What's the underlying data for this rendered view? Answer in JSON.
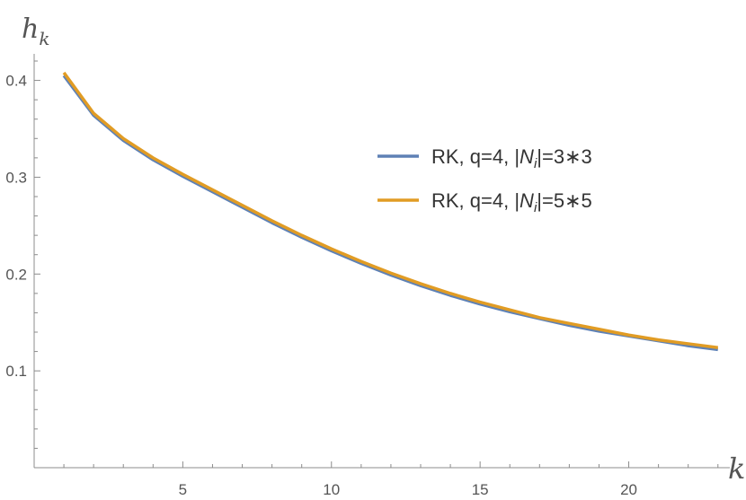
{
  "chart_data": {
    "type": "line",
    "title": "",
    "xlabel": "k",
    "ylabel_main": "h",
    "ylabel_sub": "k",
    "xlim": [
      0,
      23.4
    ],
    "ylim": [
      0,
      0.42
    ],
    "xticks": [
      5,
      10,
      15,
      20
    ],
    "xtick_labels": [
      "5",
      "10",
      "15",
      "20"
    ],
    "yticks": [
      0.1,
      0.2,
      0.3,
      0.4
    ],
    "ytick_labels": [
      "0.1",
      "0.2",
      "0.3",
      "0.4"
    ],
    "grid": false,
    "legend_position": "right",
    "x": [
      1,
      2,
      3,
      4,
      5,
      6,
      7,
      8,
      9,
      10,
      11,
      12,
      13,
      14,
      15,
      16,
      17,
      18,
      19,
      20,
      21,
      22,
      23
    ],
    "series": [
      {
        "name": "RK, q=4, |N_i|=3∗3",
        "legend": {
          "prefix": "RK, q=4, |",
          "var": "N",
          "sub": "i",
          "suffix": "|=3∗3"
        },
        "color": "#5e81b5",
        "values": [
          0.405,
          0.364,
          0.338,
          0.318,
          0.301,
          0.285,
          0.269,
          0.253,
          0.238,
          0.224,
          0.211,
          0.199,
          0.188,
          0.178,
          0.169,
          0.161,
          0.154,
          0.147,
          0.141,
          0.136,
          0.131,
          0.126,
          0.122
        ]
      },
      {
        "name": "RK, q=4, |N_i|=5∗5",
        "legend": {
          "prefix": "RK, q=4, |",
          "var": "N",
          "sub": "i",
          "suffix": "|=5∗5"
        },
        "color": "#e19c24",
        "values": [
          0.408,
          0.366,
          0.34,
          0.32,
          0.303,
          0.287,
          0.271,
          0.255,
          0.24,
          0.226,
          0.213,
          0.201,
          0.19,
          0.18,
          0.171,
          0.163,
          0.155,
          0.149,
          0.143,
          0.137,
          0.132,
          0.128,
          0.124
        ]
      }
    ]
  }
}
